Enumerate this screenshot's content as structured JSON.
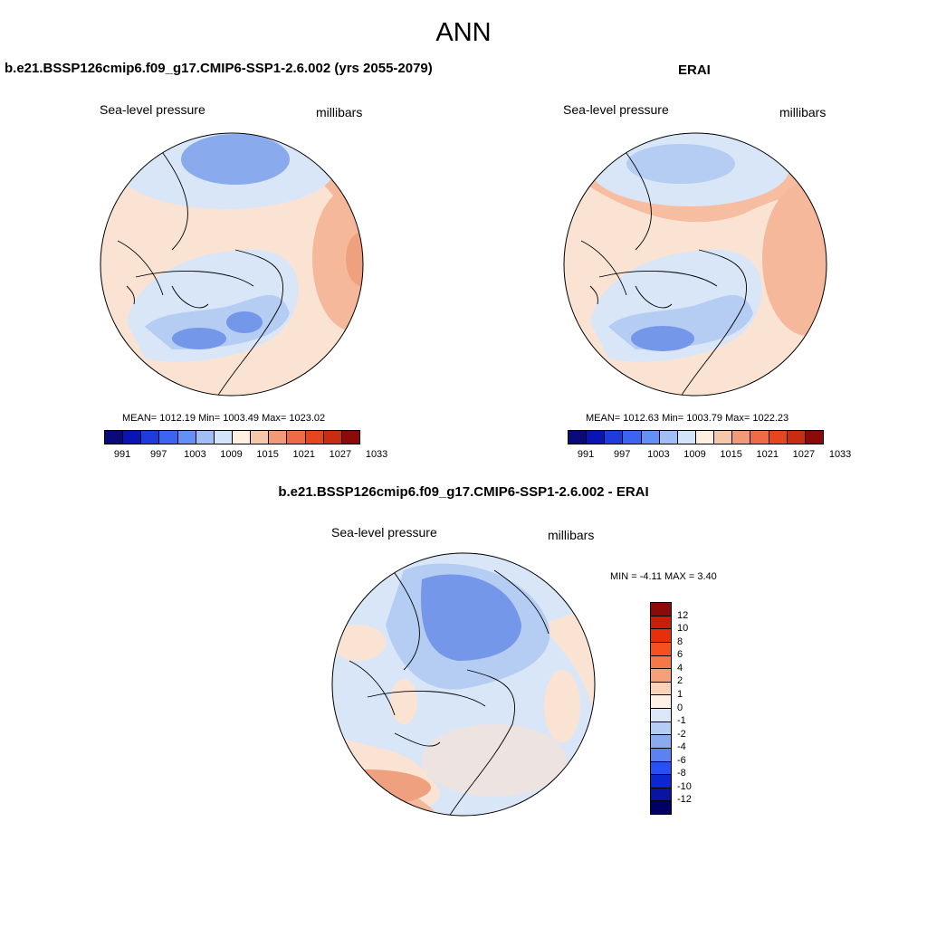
{
  "title": "ANN",
  "panels": [
    {
      "title": "b.e21.BSSP126cmip6.f09_g17.CMIP6-SSP1-2.6.002 (yrs 2055-2079)",
      "left_label": "Sea-level pressure",
      "right_label": "millibars",
      "stats": "MEAN= 1012.19  Min= 1003.49  Max= 1023.02"
    },
    {
      "title": "ERAI",
      "left_label": "Sea-level pressure",
      "right_label": "millibars",
      "stats": "MEAN= 1012.63  Min= 1003.79  Max= 1022.23"
    }
  ],
  "diff_panel": {
    "title": "b.e21.BSSP126cmip6.f09_g17.CMIP6-SSP1-2.6.002 - ERAI",
    "left_label": "Sea-level pressure",
    "right_label": "millibars",
    "stats": "MIN =  -4.11 MAX =   3.40"
  },
  "colorbar": {
    "colors": [
      "#0a0a78",
      "#0a14b4",
      "#1e3cdc",
      "#3c64f0",
      "#6490f5",
      "#a0bef5",
      "#d2e4fa",
      "#fff0e0",
      "#f5c8aa",
      "#f09a78",
      "#f06a46",
      "#e6461e",
      "#c82d14",
      "#8c0a0a"
    ],
    "ticks": [
      "991",
      "997",
      "1003",
      "1009",
      "1015",
      "1021",
      "1027",
      "1033"
    ]
  },
  "diff_colorbar": {
    "colors": [
      "#8c0a0a",
      "#c81e0a",
      "#e6300a",
      "#f5501e",
      "#f57846",
      "#f5a078",
      "#fad2b9",
      "#fff0e6",
      "#dce8fa",
      "#b4cdf5",
      "#8caaf0",
      "#5a82f0",
      "#2850f0",
      "#0a28d2",
      "#0a14a0",
      "#000064"
    ],
    "ticks": [
      "12",
      "10",
      "8",
      "6",
      "4",
      "2",
      "1",
      "0",
      "-1",
      "-2",
      "-4",
      "-6",
      "-8",
      "-10",
      "-12"
    ]
  },
  "map_legend": {
    "land_outline_color": "#000000",
    "field_colors": [
      "#fbe3d3",
      "#f5b89a",
      "#efa07e",
      "#d8e6f8",
      "#b5cdf2",
      "#8aaaee",
      "#7597ea"
    ]
  }
}
